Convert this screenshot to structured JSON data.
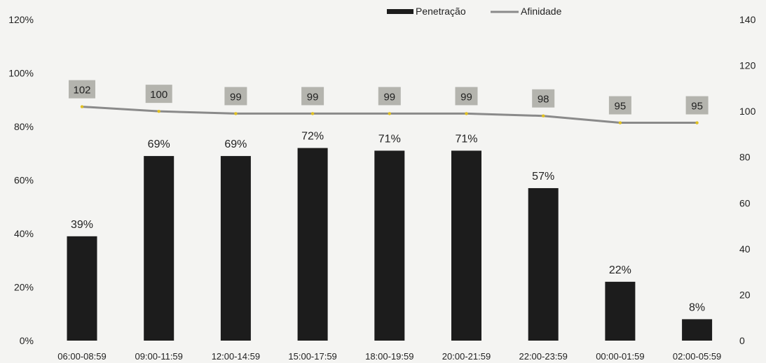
{
  "chart_data": {
    "type": "bar",
    "categories": [
      "06:00-08:59",
      "09:00-11:59",
      "12:00-14:59",
      "15:00-17:59",
      "18:00-19:59",
      "20:00-21:59",
      "22:00-23:59",
      "00:00-01:59",
      "02:00-05:59"
    ],
    "series": [
      {
        "name": "Penetração",
        "kind": "bar",
        "axis": "left",
        "values": [
          39,
          69,
          69,
          72,
          71,
          71,
          57,
          22,
          8
        ],
        "labels": [
          "39%",
          "69%",
          "69%",
          "72%",
          "71%",
          "71%",
          "57%",
          "22%",
          "8%"
        ],
        "color": "#1c1c1c"
      },
      {
        "name": "Afinidade",
        "kind": "line",
        "axis": "right",
        "values": [
          102,
          100,
          99,
          99,
          99,
          99,
          98,
          95,
          95
        ],
        "labels": [
          "102",
          "100",
          "99",
          "99",
          "99",
          "99",
          "98",
          "95",
          "95"
        ],
        "color": "#8a8a8a",
        "label_bg": "#b4b4ae",
        "marker_color": "#e0c020"
      }
    ],
    "y_left": {
      "lim": [
        0,
        120
      ],
      "ticks": [
        0,
        20,
        40,
        60,
        80,
        100,
        120
      ],
      "tick_labels": [
        "0%",
        "20%",
        "40%",
        "60%",
        "80%",
        "100%",
        "120%"
      ]
    },
    "y_right": {
      "lim": [
        0,
        140
      ],
      "ticks": [
        0,
        20,
        40,
        60,
        80,
        100,
        120,
        140
      ],
      "tick_labels": [
        "0",
        "20",
        "40",
        "60",
        "80",
        "100",
        "120",
        "140"
      ]
    },
    "legend": {
      "position": "top-center",
      "items": [
        "Penetração",
        "Afinidade"
      ]
    },
    "grid": false,
    "title": "",
    "xlabel": "",
    "ylabel": ""
  }
}
